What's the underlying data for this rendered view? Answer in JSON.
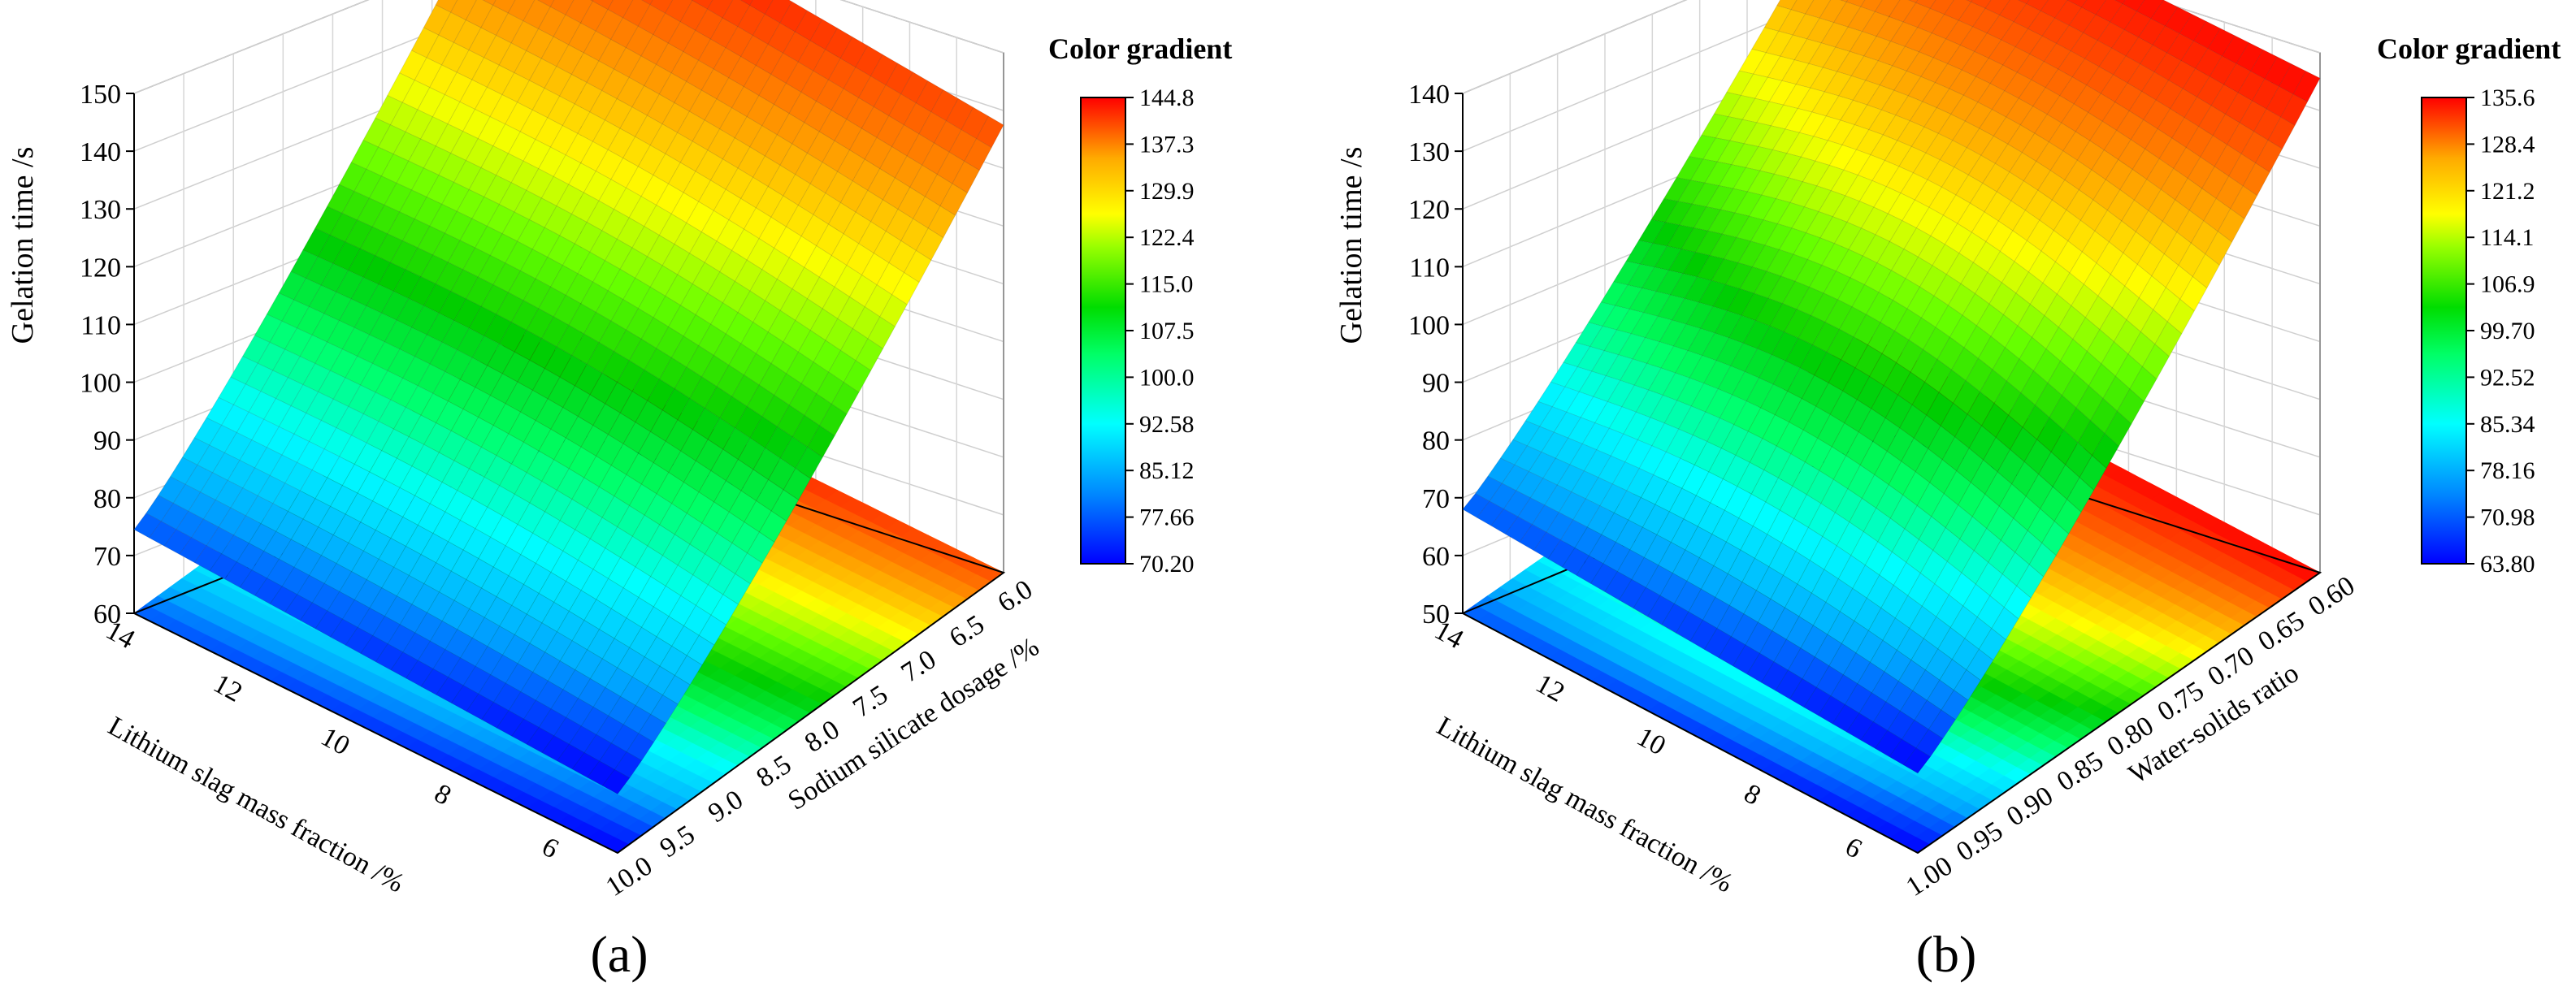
{
  "chart_data": [
    {
      "type": "surface",
      "panel_label": "(a)",
      "zlabel": "Gelation time /s",
      "xlabel": "Lithium slag mass fraction /%",
      "ylabel": "Sodium silicate dosage /%",
      "x_ticks": [
        "14",
        "12",
        "10",
        "8",
        "6"
      ],
      "y_ticks": [
        "6.0",
        "6.5",
        "7.0",
        "7.5",
        "8.0",
        "8.5",
        "9.0",
        "9.5",
        "10.0"
      ],
      "z_ticks": [
        "60",
        "70",
        "80",
        "90",
        "100",
        "110",
        "120",
        "130",
        "140",
        "150"
      ],
      "xlim": [
        5,
        14
      ],
      "ylim": [
        6.0,
        10.0
      ],
      "zlim": [
        60,
        150
      ],
      "corner_values": {
        "x14_y6": 144.8,
        "x5_y6": 137.5,
        "x14_y10": 74.5,
        "x5_y10": 70.2
      },
      "colorbar_title": "Color gradient",
      "colorbar_ticks": [
        "144.8",
        "137.3",
        "129.9",
        "122.4",
        "115.0",
        "107.5",
        "100.0",
        "92.58",
        "85.12",
        "77.66",
        "70.20"
      ],
      "colorbar_range": [
        70.2,
        144.8
      ],
      "colormap": [
        "#0000ff",
        "#00aaff",
        "#00ffff",
        "#00ff66",
        "#00cc00",
        "#66ff00",
        "#ffff00",
        "#ffaa00",
        "#ff5500",
        "#ff0000"
      ],
      "grid": true
    },
    {
      "type": "surface",
      "panel_label": "(b)",
      "zlabel": "Gelation time /s",
      "xlabel": "Lithium slag mass fraction /%",
      "ylabel": "Water-solids ratio",
      "x_ticks": [
        "14",
        "12",
        "10",
        "8",
        "6"
      ],
      "y_ticks": [
        "0.60",
        "0.65",
        "0.70",
        "0.75",
        "0.80",
        "0.85",
        "0.90",
        "0.95",
        "1.00"
      ],
      "z_ticks": [
        "50",
        "60",
        "70",
        "80",
        "90",
        "100",
        "110",
        "120",
        "130",
        "140"
      ],
      "xlim": [
        5,
        14
      ],
      "ylim": [
        0.6,
        1.0
      ],
      "zlim": [
        50,
        140
      ],
      "corner_values": {
        "x14_y060": 133.5,
        "x5_y060": 135.6,
        "x14_y100": 68.0,
        "x5_y100": 63.8
      },
      "colorbar_title": "Color gradient",
      "colorbar_ticks": [
        "135.6",
        "128.4",
        "121.2",
        "114.1",
        "106.9",
        "99.70",
        "92.52",
        "85.34",
        "78.16",
        "70.98",
        "63.80"
      ],
      "colorbar_range": [
        63.8,
        135.6
      ],
      "colormap": [
        "#0000ff",
        "#00aaff",
        "#00ffff",
        "#00ff66",
        "#00cc00",
        "#66ff00",
        "#ffff00",
        "#ffaa00",
        "#ff5500",
        "#ff0000"
      ],
      "grid": true
    }
  ]
}
